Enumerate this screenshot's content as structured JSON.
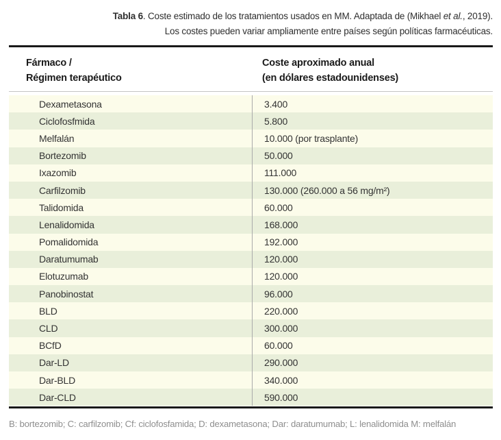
{
  "caption": {
    "bold": "Tabla 6",
    "line1_a": ". Coste estimado de los tratamientos usados en MM. Adaptada de (Mikhael ",
    "line1_italic": "et al.",
    "line1_b": ", 2019).",
    "line2": "Los costes pueden variar ampliamente entre países según políticas farmacéuticas."
  },
  "table": {
    "col1_header_line1": "Fármaco /",
    "col1_header_line2": "Régimen terapéutico",
    "col2_header_line1": "Coste aproximado anual",
    "col2_header_line2": "(en dólares estadounidenses)",
    "rows": [
      {
        "drug": "Dexametasona",
        "cost": "3.400"
      },
      {
        "drug": "Ciclofosfmida",
        "cost": "5.800"
      },
      {
        "drug": "Melfalán",
        "cost": "10.000 (por trasplante)"
      },
      {
        "drug": "Bortezomib",
        "cost": "50.000"
      },
      {
        "drug": "Ixazomib",
        "cost": "111.000"
      },
      {
        "drug": "Carfilzomib",
        "cost": "130.000 (260.000 a 56 mg/m²)"
      },
      {
        "drug": "Talidomida",
        "cost": "60.000"
      },
      {
        "drug": "Lenalidomida",
        "cost": "168.000"
      },
      {
        "drug": "Pomalidomida",
        "cost": "192.000"
      },
      {
        "drug": "Daratumumab",
        "cost": "120.000"
      },
      {
        "drug": "Elotuzumab",
        "cost": "120.000"
      },
      {
        "drug": "Panobinostat",
        "cost": "96.000"
      },
      {
        "drug": "BLD",
        "cost": "220.000"
      },
      {
        "drug": "CLD",
        "cost": "300.000"
      },
      {
        "drug": "BCfD",
        "cost": "60.000"
      },
      {
        "drug": "Dar-LD",
        "cost": "290.000"
      },
      {
        "drug": "Dar-BLD",
        "cost": "340.000"
      },
      {
        "drug": "Dar-CLD",
        "cost": "590.000"
      }
    ]
  },
  "footnote": "B: bortezomib; C: carfilzomib; Cf: ciclofosfamida; D: dexametasona; Dar: daratumumab; L: lenalidomida M: melfalán",
  "colors": {
    "row_cream": "#FCFCEA",
    "row_green": "#E9EFDA",
    "rule_dark": "#191919",
    "rule_light": "#C4C4C4",
    "column_divider": "#A9A9A9",
    "body_text": "#333333",
    "footnote_text": "#8E8E8E"
  },
  "chart_data": {
    "type": "table",
    "title": "Tabla 6. Coste estimado de los tratamientos usados en MM. Adaptada de (Mikhael et al., 2019). Los costes pueden variar ampliamente entre países según políticas farmacéuticas.",
    "columns": [
      "Fármaco / Régimen terapéutico",
      "Coste aproximado anual (en dólares estadounidenses)"
    ],
    "rows": [
      [
        "Dexametasona",
        "3.400"
      ],
      [
        "Ciclofosfmida",
        "5.800"
      ],
      [
        "Melfalán",
        "10.000 (por trasplante)"
      ],
      [
        "Bortezomib",
        "50.000"
      ],
      [
        "Ixazomib",
        "111.000"
      ],
      [
        "Carfilzomib",
        "130.000 (260.000 a 56 mg/m²)"
      ],
      [
        "Talidomida",
        "60.000"
      ],
      [
        "Lenalidomida",
        "168.000"
      ],
      [
        "Pomalidomida",
        "192.000"
      ],
      [
        "Daratumumab",
        "120.000"
      ],
      [
        "Elotuzumab",
        "120.000"
      ],
      [
        "Panobinostat",
        "96.000"
      ],
      [
        "BLD",
        "220.000"
      ],
      [
        "CLD",
        "300.000"
      ],
      [
        "BCfD",
        "60.000"
      ],
      [
        "Dar-LD",
        "290.000"
      ],
      [
        "Dar-BLD",
        "340.000"
      ],
      [
        "Dar-CLD",
        "590.000"
      ]
    ]
  }
}
